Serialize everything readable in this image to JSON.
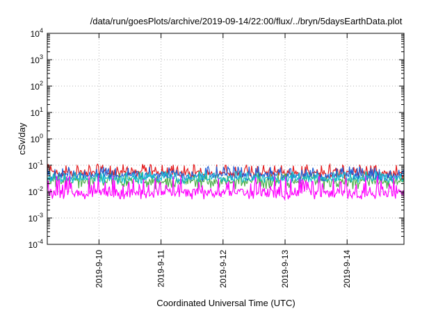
{
  "chart_data": {
    "type": "line",
    "title": "/data/run/goesPlots/archive/2019-09-14/22:00/flux/../bryn/5daysEarthData.plot",
    "xlabel": "Coordinated Universal Time (UTC)",
    "ylabel": "cSv/day",
    "yscale": "log",
    "ylim": [
      0.0001,
      10000
    ],
    "xlim": [
      "2019-09-09T04:00",
      "2019-09-14T22:00"
    ],
    "x_ticks": [
      "2019-9-10",
      "2019-9-11",
      "2019-9-12",
      "2019-9-13",
      "2019-9-14"
    ],
    "y_ticks": [
      {
        "base": "10",
        "exp": "-4"
      },
      {
        "base": "10",
        "exp": "-3"
      },
      {
        "base": "10",
        "exp": "-2"
      },
      {
        "base": "10",
        "exp": "-1"
      },
      {
        "base": "10",
        "exp": "0"
      },
      {
        "base": "10",
        "exp": "1"
      },
      {
        "base": "10",
        "exp": "2"
      },
      {
        "base": "10",
        "exp": "3"
      },
      {
        "base": "10",
        "exp": "4"
      }
    ],
    "grid": true,
    "legend": "none",
    "series": [
      {
        "color": "#e41a1c",
        "y_typical": 0.05,
        "y_min": 0.03,
        "y_max": 0.11
      },
      {
        "color": "#4daf4a",
        "y_typical": 0.025,
        "y_min": 0.012,
        "y_max": 0.06
      },
      {
        "color": "#1f5fd6",
        "y_typical": 0.04,
        "y_min": 0.025,
        "y_max": 0.09
      },
      {
        "color": "#17becf",
        "y_typical": 0.03,
        "y_min": 0.02,
        "y_max": 0.06
      },
      {
        "color": "#ff00ff",
        "y_typical": 0.009,
        "y_min": 0.005,
        "y_max": 0.04
      }
    ]
  }
}
